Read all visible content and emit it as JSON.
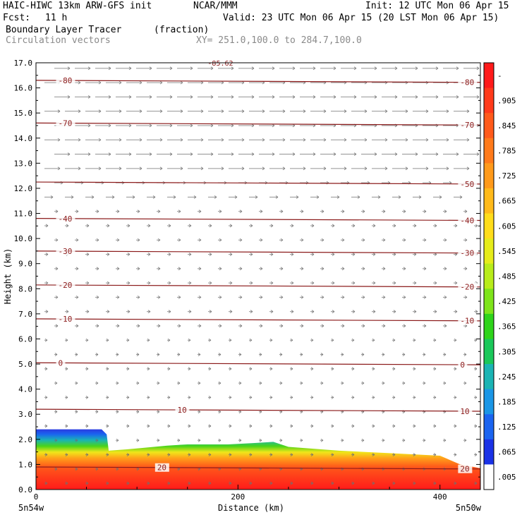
{
  "header": {
    "model": "HAIC-HIWC 13km ARW-GFS init",
    "org": "NCAR/MMM",
    "init": "Init: 12 UTC Mon 06 Apr 15",
    "fcst_label": "Fcst:",
    "fcst_value": "11 h",
    "valid": "Valid: 23 UTC Mon 06 Apr 15 (20 LST Mon 06 Apr 15)",
    "field": "Boundary Layer Tracer",
    "field_units": "(fraction)",
    "vectors": "Circulation vectors",
    "cross_section": "XY= 251.0,100.0 to 284.7,100.0"
  },
  "chart_data": {
    "type": "heatmap",
    "title": "Boundary Layer Tracer",
    "xlabel": "Distance (km)",
    "ylabel": "Height (km)",
    "xlim": [
      0,
      440
    ],
    "ylim": [
      0,
      17
    ],
    "x_ticks": [
      "0",
      "200",
      "400"
    ],
    "x_end_labels": [
      "5n54w",
      "5n50w"
    ],
    "y_ticks": [
      "0.0",
      "1.0",
      "2.0",
      "3.0",
      "4.0",
      "5.0",
      "6.0",
      "7.0",
      "8.0",
      "9.0",
      "10.0",
      "11.0",
      "12.0",
      "13.0",
      "14.0",
      "15.0",
      "16.0",
      "17.0"
    ],
    "colorbar_labels": [
      "-",
      ".905",
      ".845",
      ".785",
      ".725",
      ".665",
      ".605",
      ".545",
      ".485",
      ".425",
      ".365",
      ".305",
      ".245",
      ".185",
      ".125",
      ".065",
      ".005"
    ],
    "colorbar_colors": [
      "#ff1a1a",
      "#ff3a1a",
      "#ff5a1a",
      "#ff7a1a",
      "#ff9a1a",
      "#ffba1a",
      "#ffdd1a",
      "#e6ec1a",
      "#b8ec1a",
      "#7ee41a",
      "#2ed41a",
      "#1ac85a",
      "#1ab4b4",
      "#1a96e6",
      "#1a64f0",
      "#1a32e6",
      "#ffffff"
    ],
    "tracer_envelope_km": [
      [
        0,
        2.4
      ],
      [
        30,
        2.4
      ],
      [
        65,
        2.4
      ],
      [
        70,
        2.2
      ],
      [
        72,
        1.55
      ],
      [
        90,
        1.6
      ],
      [
        130,
        1.75
      ],
      [
        150,
        1.8
      ],
      [
        190,
        1.8
      ],
      [
        215,
        1.85
      ],
      [
        235,
        1.9
      ],
      [
        250,
        1.7
      ],
      [
        300,
        1.55
      ],
      [
        350,
        1.45
      ],
      [
        400,
        1.35
      ],
      [
        420,
        1.0
      ],
      [
        440,
        0.85
      ]
    ],
    "isotherms": [
      {
        "label": "-80",
        "z": 16.3,
        "label_x": [
          22,
          420
        ]
      },
      {
        "label": "-70",
        "z": 14.6,
        "label_x": [
          22,
          420
        ]
      },
      {
        "label": "-50",
        "z": 12.25,
        "label_x": [
          420
        ]
      },
      {
        "label": "-40",
        "z": 10.8,
        "label_x": [
          22,
          420
        ]
      },
      {
        "label": "-30",
        "z": 9.5,
        "label_x": [
          22,
          420
        ]
      },
      {
        "label": "-20",
        "z": 8.15,
        "label_x": [
          22,
          420
        ]
      },
      {
        "label": "-10",
        "z": 6.8,
        "label_x": [
          22,
          420
        ]
      },
      {
        "label": "0",
        "z": 5.05,
        "label_x": [
          22,
          420
        ]
      },
      {
        "label": "10",
        "z": 3.2,
        "label_x": [
          140,
          420
        ]
      },
      {
        "label": "20",
        "z": 0.9,
        "label_x": [
          120,
          420
        ]
      }
    ],
    "top_label": "-85.62"
  }
}
